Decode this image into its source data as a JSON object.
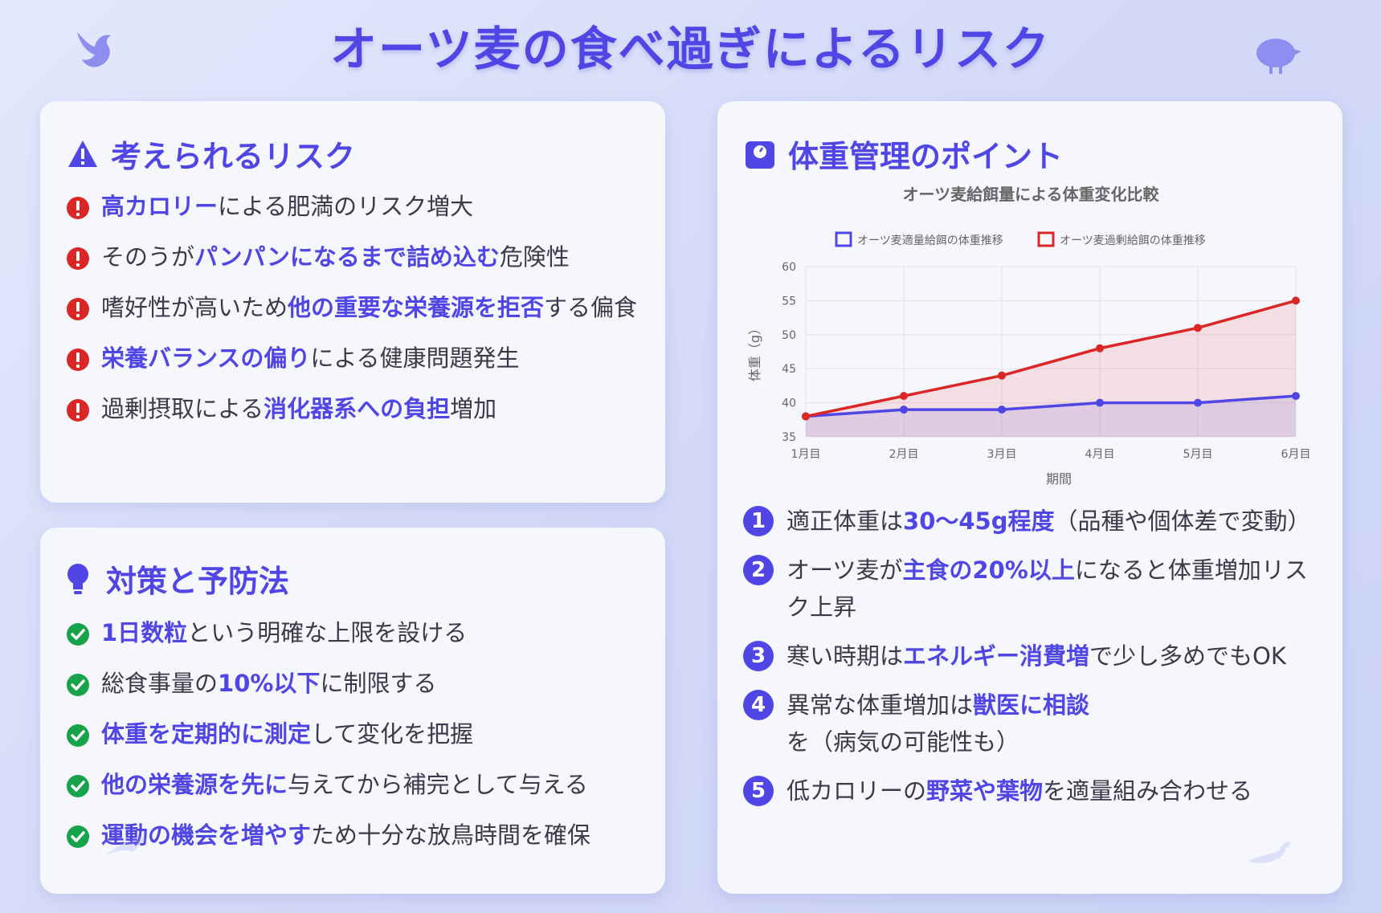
{
  "title": "オーツ麦の食べ過ぎによるリスク",
  "risk": {
    "title": "考えられるリスク",
    "items": [
      {
        "pre": "",
        "hl": "高カロリー",
        "post": "による肥満のリスク増大"
      },
      {
        "pre": "そのうが",
        "hl": "パンパンになるまで詰め込む",
        "post": "危険性"
      },
      {
        "pre": "嗜好性が高いため",
        "hl": "他の重要な栄養源を拒否",
        "post": "する偏食"
      },
      {
        "pre": "",
        "hl": "栄養バランスの偏り",
        "post": "による健康問題発生"
      },
      {
        "pre": "過剰摂取による",
        "hl": "消化器系への負担",
        "post": "増加"
      }
    ]
  },
  "measure": {
    "title": "対策と予防法",
    "items": [
      {
        "pre": "",
        "hl": "1日数粒",
        "post": "という明確な上限を設ける"
      },
      {
        "pre": "総食事量の",
        "hl": "10%以下",
        "post": "に制限する"
      },
      {
        "pre": "",
        "hl": "体重を定期的に測定",
        "post": "して変化を把握"
      },
      {
        "pre": "",
        "hl": "他の栄養源を先に",
        "post": "与えてから補完として与える"
      },
      {
        "pre": "",
        "hl": "運動の機会を増やす",
        "post": "ため十分な放鳥時間を確保"
      }
    ]
  },
  "weight": {
    "title": "体重管理のポイント",
    "items": [
      {
        "n": "1",
        "pre": "適正体重は",
        "hl": "30～45g程度",
        "post": "（品種や個体差で変動）"
      },
      {
        "n": "2",
        "pre": "オーツ麦が",
        "hl": "主食の20%以上",
        "post": "になると体重増加リスク上昇"
      },
      {
        "n": "3",
        "pre": "寒い時期は",
        "hl": "エネルギー消費増",
        "post": "で少し多めでもOK"
      },
      {
        "n": "4",
        "pre": "異常な体重増加は",
        "hl": "獣医に相談",
        "post": "を（病気の可能性も）"
      },
      {
        "n": "5",
        "pre": "低カロリーの",
        "hl": "野菜や葉物",
        "post": "を適量組み合わせる"
      }
    ]
  },
  "colors": {
    "accent": "#4f46e5",
    "danger": "#dc2626",
    "success": "#16a34a"
  },
  "chart_data": {
    "type": "line",
    "title": "オーツ麦給餌量による体重変化比較",
    "xlabel": "期間",
    "ylabel": "体重（g）",
    "categories": [
      "1月目",
      "2月目",
      "3月目",
      "4月目",
      "5月目",
      "6月目"
    ],
    "ylim": [
      35,
      60
    ],
    "yticks": [
      35,
      40,
      45,
      50,
      55,
      60
    ],
    "grid": true,
    "legend": "top",
    "series": [
      {
        "name": "オーツ麦適量給餌の体重推移",
        "color": "#4f46e5",
        "values": [
          38,
          39,
          39,
          40,
          40,
          41
        ]
      },
      {
        "name": "オーツ麦過剰給餌の体重推移",
        "color": "#dc2626",
        "values": [
          38,
          41,
          44,
          48,
          51,
          55
        ]
      }
    ]
  }
}
